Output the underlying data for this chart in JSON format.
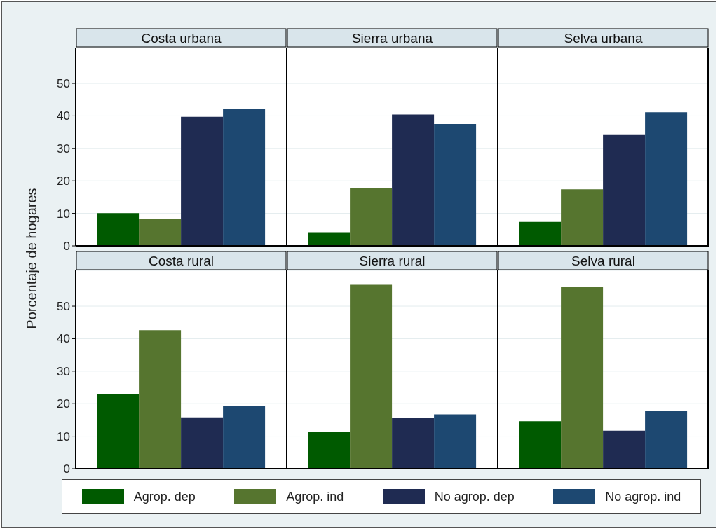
{
  "chart_data": [
    {
      "type": "bar",
      "ylabel": "Porcentaje de hogares",
      "categories": [
        "Costa urbana",
        "Sierra urbana",
        "Selva urbana"
      ],
      "ylim": [
        0,
        61
      ],
      "yticks": [
        0,
        10,
        20,
        30,
        40,
        50
      ],
      "grid": "y",
      "series": [
        {
          "color": "#005a00",
          "values": [
            10.1,
            4.2,
            7.4
          ]
        },
        {
          "color": "#56752f",
          "values": [
            8.3,
            17.8,
            17.4
          ]
        },
        {
          "color": "#1f2b52",
          "values": [
            39.7,
            40.4,
            34.3
          ]
        },
        {
          "color": "#1d4871",
          "values": [
            42.2,
            37.5,
            41.1
          ]
        }
      ]
    },
    {
      "type": "bar",
      "categories": [
        "Costa rural",
        "Sierra rural",
        "Selva rural"
      ],
      "ylim": [
        0,
        61
      ],
      "yticks": [
        0,
        10,
        20,
        30,
        40,
        50
      ],
      "grid": "y",
      "legend": "bottom",
      "series": [
        {
          "name": "Agrop. dep",
          "color": "#005a00",
          "values": [
            22.9,
            11.4,
            14.6
          ]
        },
        {
          "name": "Agrop. ind",
          "color": "#56752f",
          "values": [
            42.6,
            56.6,
            55.9
          ]
        },
        {
          "name": "No agrop. dep",
          "color": "#1f2b52",
          "values": [
            15.8,
            15.7,
            11.7
          ]
        },
        {
          "name": "No agrop. ind",
          "color": "#1d4871",
          "values": [
            19.4,
            16.7,
            17.8
          ]
        }
      ]
    }
  ]
}
